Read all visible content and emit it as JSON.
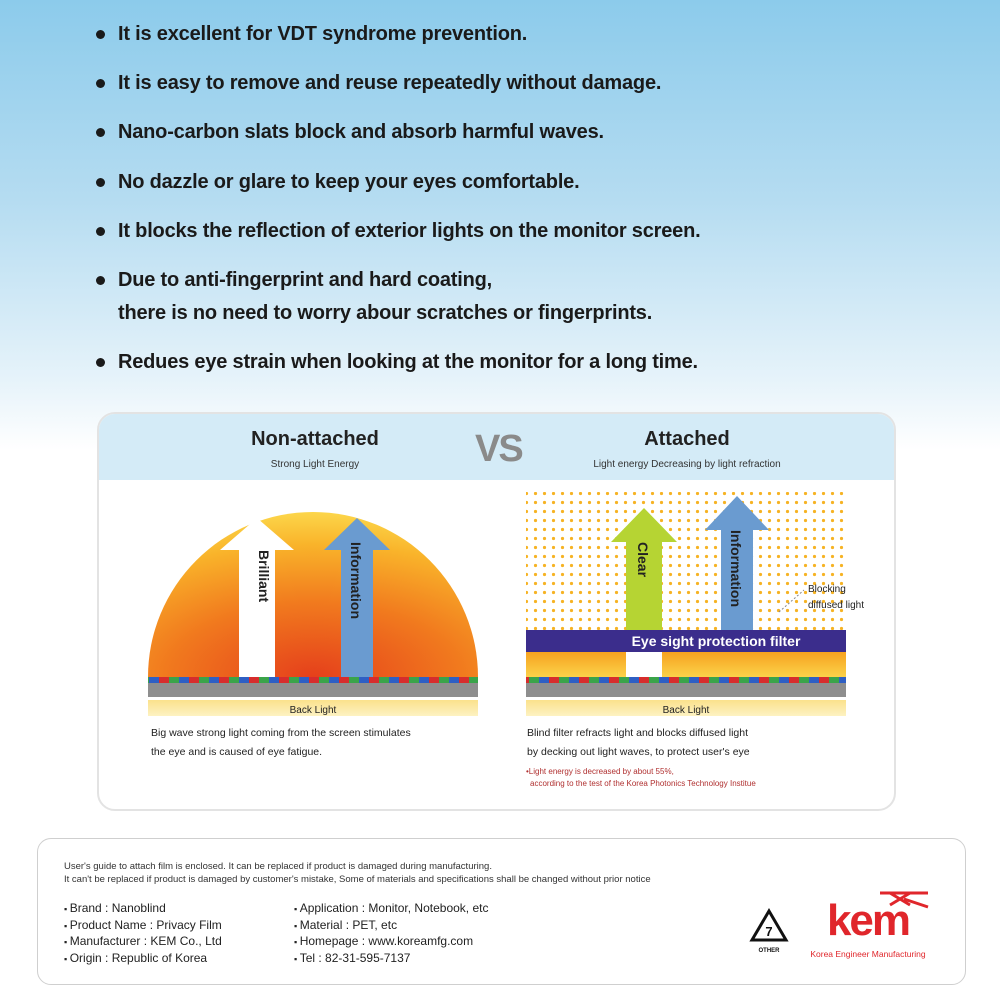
{
  "bullets": [
    "It is excellent for VDT syndrome prevention.",
    "It is easy to remove and reuse repeatedly without damage.",
    "Nano-carbon slats block and absorb harmful waves.",
    "No dazzle or glare to keep your eyes comfortable.",
    "It blocks the reflection of exterior lights on the monitor screen.",
    "Due to anti-fingerprint and hard coating,",
    "there is no need to worry abour scratches or fingerprints.",
    "Redues eye strain when looking at the monitor for a long time."
  ],
  "comparison": {
    "vs": "VS",
    "left": {
      "title": "Non-attached",
      "subtitle": "Strong Light Energy",
      "arrow1": "Brilliant",
      "arrow2": "Information",
      "backlight": "Back Light",
      "desc1": "Big wave strong light coming from the screen stimulates",
      "desc2": "the eye and is caused of eye fatigue."
    },
    "right": {
      "title": "Attached",
      "subtitle": "Light energy Decreasing by light refraction",
      "arrow1": "Clear",
      "arrow2": "Information",
      "blocking1": "Blocking",
      "blocking2": "diffused light",
      "filter": "Eye sight protection filter",
      "backlight": "Back Light",
      "desc1": "Blind filter refracts light and blocks diffused light",
      "desc2": "by decking out light waves, to protect user's eye",
      "note1": "•Light energy is decreased by about 55%,",
      "note2": "according to the test of the Korea Photonics Technology Institue"
    }
  },
  "footer": {
    "note1": "User's guide to attach film is enclosed. It can be replaced if product is damaged during manufacturing.",
    "note2": "It can't be replaced if product is damaged by customer's mistake, Some of materials and specifications shall be changed without prior notice",
    "specs_left": [
      "Brand : Nanoblind",
      "Product Name : Privacy Film",
      "Manufacturer : KEM Co., Ltd",
      "Origin : Republic of Korea"
    ],
    "specs_right": [
      "Application : Monitor, Notebook, etc",
      "Material : PET, etc",
      "Homepage : www.koreamfg.com",
      "Tel : 82-31-595-7137"
    ],
    "recycle_number": "7",
    "recycle_label": "OTHER",
    "logo_text": "kem",
    "logo_tagline": "Korea Engineer Manufacturing"
  },
  "colors": {
    "brand_red": "#e0262b",
    "filter_purple": "#3b2d8c",
    "arrow_blue": "#6a9bd0",
    "arrow_green": "#b6d433"
  }
}
